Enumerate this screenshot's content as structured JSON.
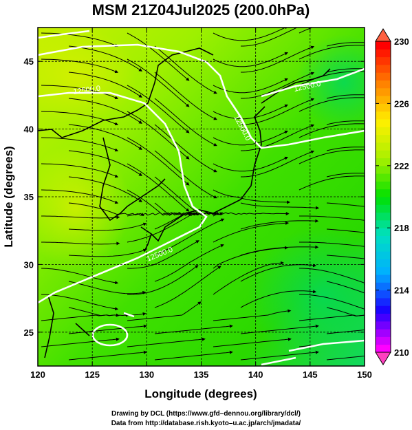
{
  "chart_data": {
    "type": "heatmap",
    "title": "MSM 21Z04Jul2025 (200.0hPa)",
    "xlabel": "Longitude (degrees)",
    "ylabel": "Latitude  (degrees)",
    "xlim": [
      120,
      150
    ],
    "ylim": [
      22.5,
      47.5
    ],
    "xticks": [
      120,
      125,
      130,
      135,
      140,
      145,
      150
    ],
    "yticks": [
      25,
      30,
      35,
      40,
      45
    ],
    "grid": true,
    "colorbar": {
      "range": [
        210,
        230
      ],
      "ticks": [
        210,
        214,
        218,
        222,
        226,
        230
      ],
      "colors": [
        "#ff00ff",
        "#1a00ff",
        "#00b0ff",
        "#00e0c0",
        "#00e000",
        "#a8f000",
        "#fff000",
        "#ff8000",
        "#ff0000"
      ]
    },
    "contours": [
      {
        "label": "12500.0"
      },
      {
        "label": "12500.0"
      },
      {
        "label": "12500.0"
      },
      {
        "label": "12500.0"
      }
    ],
    "streamline_direction": "westerly"
  },
  "credits": {
    "line1": "Drawing by DCL (https://www.gfd–dennou.org/library/dcl/)",
    "line2": "Data from http://database.rish.kyoto–u.ac.jp/arch/jmadata/"
  }
}
